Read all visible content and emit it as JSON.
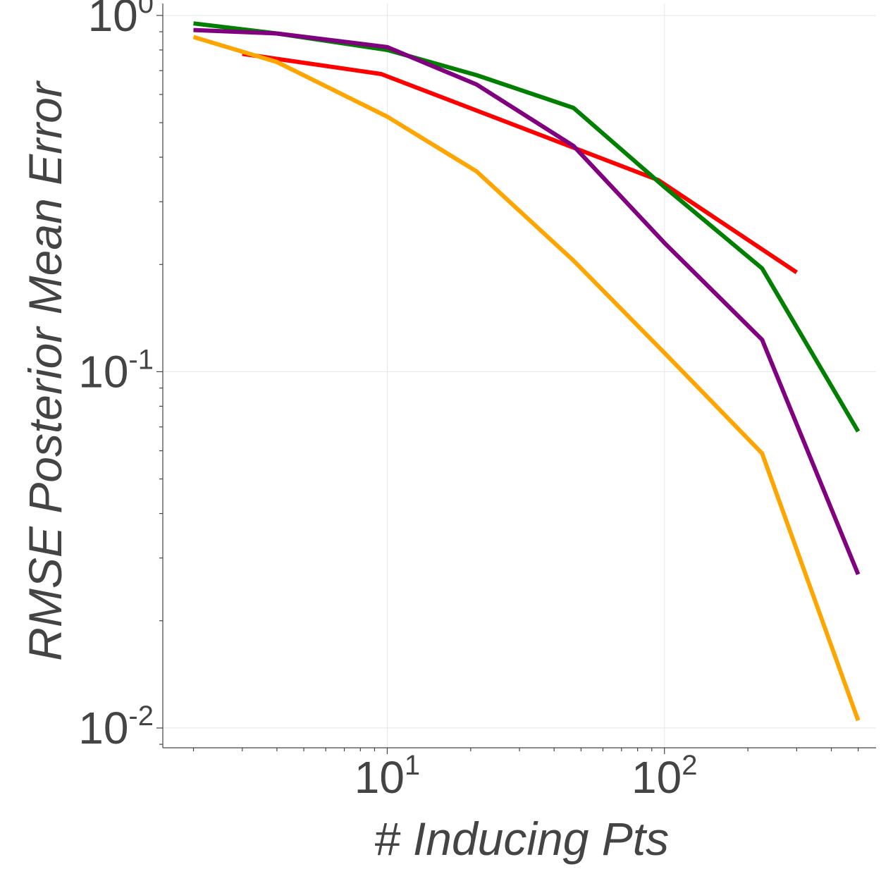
{
  "chart_data": {
    "type": "line",
    "title": "",
    "xlabel": "# Inducing Pts",
    "ylabel": "RMSE Posterior Mean Error",
    "xscale": "log",
    "yscale": "log",
    "xlim": [
      1.55,
      580
    ],
    "ylim": [
      0.0088,
      1.08
    ],
    "grid": true,
    "x_major_ticks": [
      {
        "value": 10,
        "base": "10",
        "exp": "1"
      },
      {
        "value": 100,
        "base": "10",
        "exp": "2"
      }
    ],
    "y_major_ticks": [
      {
        "value": 1,
        "base": "10",
        "exp": "0"
      },
      {
        "value": 0.1,
        "base": "10",
        "exp": "-1"
      },
      {
        "value": 0.01,
        "base": "10",
        "exp": "-2"
      }
    ],
    "series": [
      {
        "name": "red",
        "color": "#ff0000",
        "x": [
          3,
          9.5,
          95,
          300
        ],
        "y": [
          0.78,
          0.685,
          0.345,
          0.19
        ]
      },
      {
        "name": "green",
        "color": "#007f00",
        "x": [
          2,
          4,
          10,
          21,
          47,
          100,
          225,
          500
        ],
        "y": [
          0.95,
          0.89,
          0.8,
          0.68,
          0.55,
          0.33,
          0.195,
          0.068
        ]
      },
      {
        "name": "purple",
        "color": "#800080",
        "x": [
          2,
          4,
          10,
          21,
          47,
          100,
          225,
          500
        ],
        "y": [
          0.91,
          0.89,
          0.815,
          0.64,
          0.43,
          0.23,
          0.123,
          0.027
        ]
      },
      {
        "name": "orange",
        "color": "#ffa500",
        "x": [
          2,
          4,
          10,
          21,
          47,
          100,
          225,
          500
        ],
        "y": [
          0.87,
          0.74,
          0.52,
          0.365,
          0.205,
          0.113,
          0.059,
          0.0105
        ]
      }
    ]
  }
}
